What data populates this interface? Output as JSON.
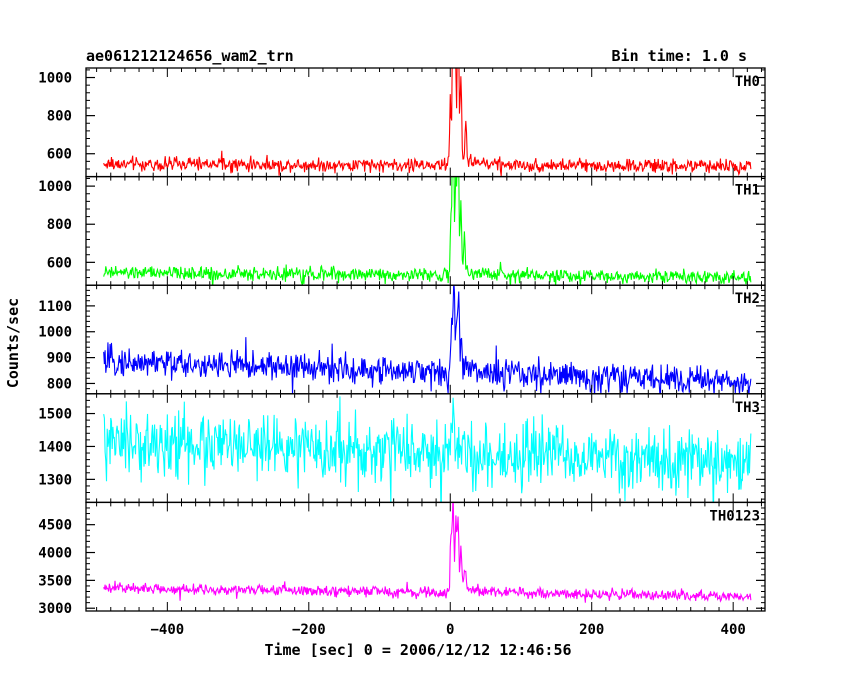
{
  "header": {
    "title": "ae061212124656_wam2_trn",
    "bin_time": "Bin time: 1.0 s"
  },
  "chart_data": {
    "type": "line",
    "title": "ae061212124656_wam2_trn",
    "xlabel": "Time [sec] 0 = 2006/12/12 12:46:56",
    "ylabel": "Counts/sec",
    "xlim": [
      -515,
      445
    ],
    "x_ticks": [
      -400,
      -200,
      0,
      200,
      400
    ],
    "x_tick_labels": [
      "−400",
      "−200",
      "0",
      "200",
      "400"
    ],
    "x_sample": {
      "start": -490,
      "end": 425,
      "step": 1
    },
    "grid": false,
    "series": [
      {
        "name": "TH0",
        "color": "#ff0000",
        "ylim": [
          480,
          1050
        ],
        "y_ticks": [
          600,
          800,
          1000
        ],
        "baseline_start": 545,
        "baseline_end": 535,
        "noise_amplitude": 35,
        "spikes": [
          {
            "x": 0,
            "y": 300
          },
          {
            "x": 4,
            "y": 960
          },
          {
            "x": 7,
            "y": 620
          },
          {
            "x": 11,
            "y": 900
          },
          {
            "x": 15,
            "y": 460
          },
          {
            "x": 22,
            "y": 210
          }
        ],
        "decay_amplitude": 60,
        "decay_tau": 30
      },
      {
        "name": "TH1",
        "color": "#00ff00",
        "ylim": [
          480,
          1050
        ],
        "y_ticks": [
          600,
          800,
          1000
        ],
        "baseline_start": 545,
        "baseline_end": 525,
        "noise_amplitude": 35,
        "spikes": [
          {
            "x": 1,
            "y": 250
          },
          {
            "x": 4,
            "y": 1000
          },
          {
            "x": 8,
            "y": 520
          },
          {
            "x": 11,
            "y": 760
          },
          {
            "x": 15,
            "y": 340
          },
          {
            "x": 20,
            "y": 170
          }
        ],
        "decay_amplitude": 45,
        "decay_tau": 30
      },
      {
        "name": "TH2",
        "color": "#0000ff",
        "ylim": [
          760,
          1180
        ],
        "y_ticks": [
          800,
          900,
          1000,
          1100
        ],
        "baseline_start": 885,
        "baseline_end": 805,
        "noise_amplitude": 55,
        "spikes": [
          {
            "x": 2,
            "y": 150
          },
          {
            "x": 5,
            "y": 360
          },
          {
            "x": 9,
            "y": 180
          },
          {
            "x": 12,
            "y": 320
          },
          {
            "x": 16,
            "y": 120
          }
        ],
        "decay_amplitude": 40,
        "decay_tau": 25
      },
      {
        "name": "TH3",
        "color": "#00ffff",
        "ylim": [
          1230,
          1560
        ],
        "y_ticks": [
          1300,
          1400,
          1500
        ],
        "baseline_start": 1410,
        "baseline_end": 1345,
        "noise_amplitude": 95,
        "spikes": [
          {
            "x": 4,
            "y": 130
          },
          {
            "x": 10,
            "y": 80
          }
        ],
        "decay_amplitude": 15,
        "decay_tau": 20
      },
      {
        "name": "TH0123",
        "color": "#ff00ff",
        "ylim": [
          2950,
          4900
        ],
        "y_ticks": [
          3000,
          3500,
          4000,
          4500
        ],
        "baseline_start": 3360,
        "baseline_end": 3210,
        "noise_amplitude": 95,
        "spikes": [
          {
            "x": 1,
            "y": 900
          },
          {
            "x": 4,
            "y": 1500
          },
          {
            "x": 8,
            "y": 1100
          },
          {
            "x": 11,
            "y": 1300
          },
          {
            "x": 15,
            "y": 700
          },
          {
            "x": 21,
            "y": 330
          }
        ],
        "decay_amplitude": 200,
        "decay_tau": 30
      }
    ]
  }
}
